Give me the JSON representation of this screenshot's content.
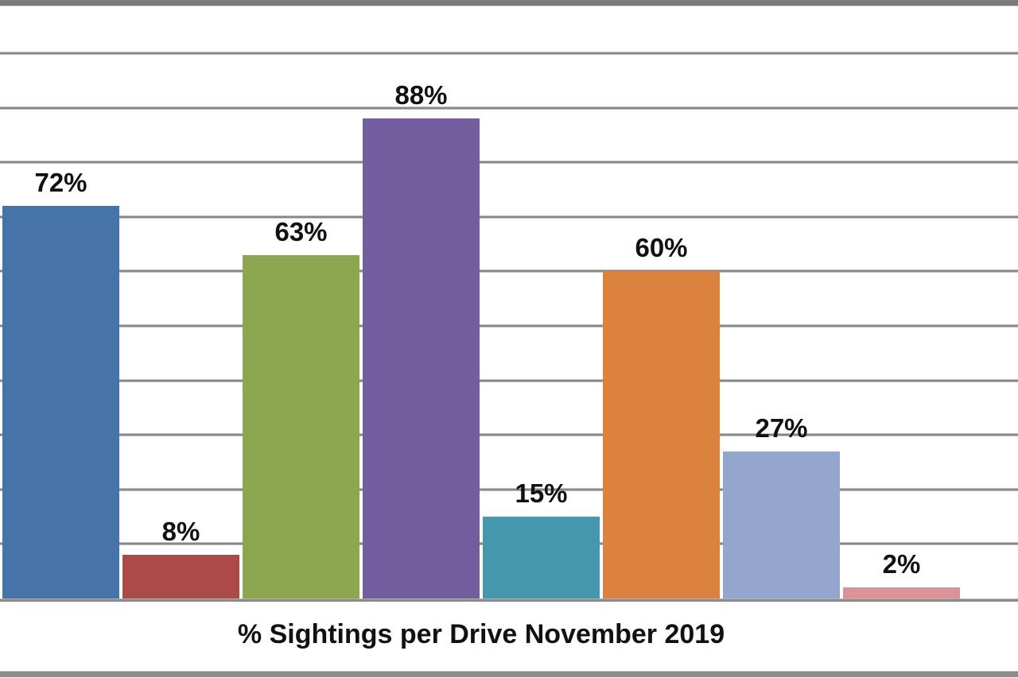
{
  "chart_data": {
    "type": "bar",
    "title": "% Sightings per Drive November 2019",
    "title_position": "below-x-axis",
    "values": [
      72,
      8,
      63,
      88,
      15,
      60,
      27,
      2
    ],
    "data_labels": [
      "72%",
      "8%",
      "63%",
      "88%",
      "15%",
      "60%",
      "27%",
      "2%"
    ],
    "bar_colors": [
      "#4674A9",
      "#AC4A47",
      "#8CA750",
      "#725E9E",
      "#4398AE",
      "#DB833E",
      "#93A6CE",
      "#D99397"
    ],
    "xlabel": "",
    "ylabel": "",
    "ylim": [
      0,
      110
    ],
    "gridline_step_percent": 10,
    "grid": "horizontal-only",
    "legend": false,
    "axis_tick_labels_visible": false,
    "gridline_color": "#878787",
    "border_color": "#7b7b7b",
    "background_color": "#ffffff",
    "label_text_color": "#111111"
  }
}
